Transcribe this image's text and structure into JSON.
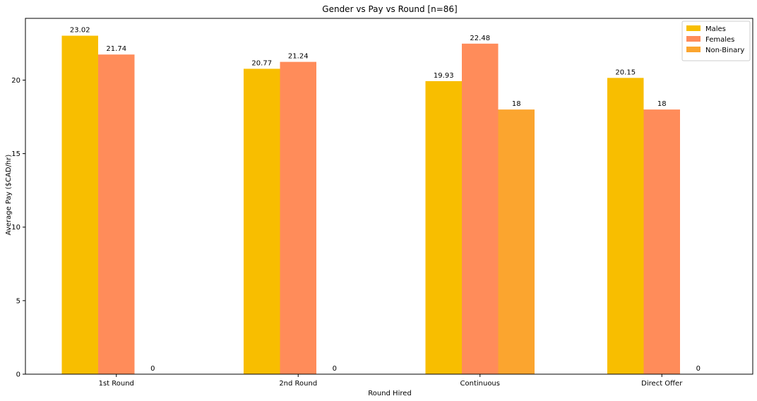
{
  "chart_data": {
    "type": "bar",
    "title": "Gender vs Pay vs Round [n=86]",
    "xlabel": "Round Hired",
    "ylabel": "Average Pay ($CAD/hr)",
    "categories": [
      "1st Round",
      "2nd Round",
      "Continuous",
      "Direct Offer"
    ],
    "series": [
      {
        "name": "Males",
        "color": "#f8be00",
        "values": [
          23.02,
          20.77,
          19.93,
          20.15
        ],
        "labels": [
          "23.02",
          "20.77",
          "19.93",
          "20.15"
        ]
      },
      {
        "name": "Females",
        "color": "#ff8c5a",
        "values": [
          21.74,
          21.24,
          22.48,
          18
        ],
        "labels": [
          "21.74",
          "21.24",
          "22.48",
          "18"
        ]
      },
      {
        "name": "Non-Binary",
        "color": "#fba52f",
        "values": [
          0,
          0,
          18,
          0
        ],
        "labels": [
          "0",
          "0",
          "18",
          "0"
        ]
      }
    ],
    "ylim": [
      0,
      24.2
    ],
    "yticks": [
      0,
      5,
      10,
      15,
      20
    ],
    "ytick_labels": [
      "0",
      "5",
      "10",
      "15",
      "20"
    ],
    "grid": false,
    "legend_position": "top-right"
  }
}
